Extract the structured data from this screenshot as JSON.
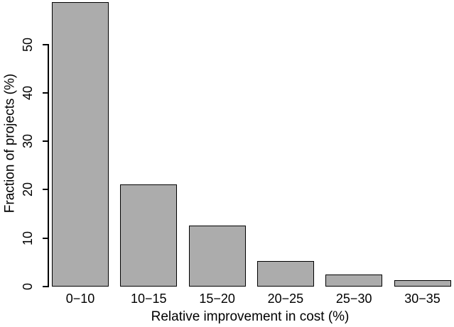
{
  "chart_data": {
    "type": "bar",
    "title": "",
    "categories": [
      "0−10",
      "10−15",
      "15−20",
      "20−25",
      "25−30",
      "30−35"
    ],
    "values": [
      58.5,
      21.0,
      12.4,
      5.1,
      2.3,
      1.2
    ],
    "xlabel": "Relative improvement in cost (%)",
    "ylabel": "Fraction of projects (%)",
    "y_ticks": [
      0,
      10,
      20,
      30,
      40,
      50
    ],
    "ylim": [
      0,
      60
    ],
    "grid": "off",
    "legend": "none",
    "bar_fill_color": "#acacac",
    "bar_border_color": "#000000",
    "axis_color": "#000000"
  }
}
